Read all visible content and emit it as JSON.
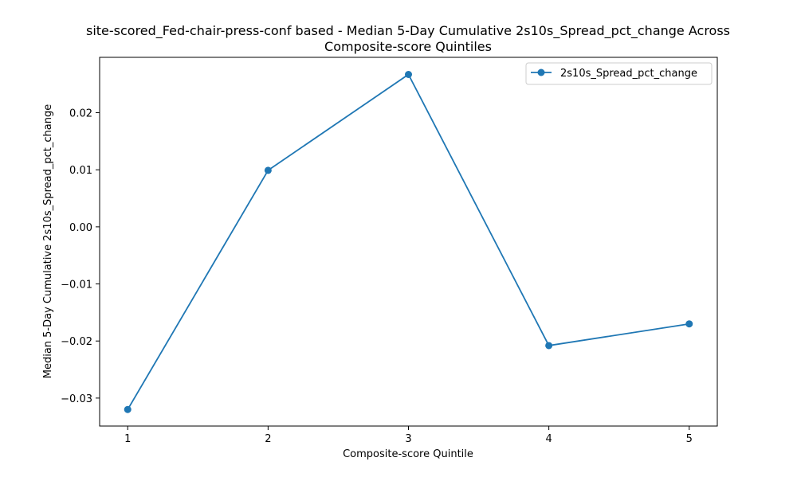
{
  "chart_data": {
    "type": "line",
    "title_line1": "site-scored_Fed-chair-press-conf based - Median 5-Day Cumulative 2s10s_Spread_pct_change Across",
    "title_line2": "Composite-score Quintiles",
    "xlabel": "Composite-score Quintile",
    "ylabel": "Median 5-Day Cumulative 2s10s_Spread_pct_change",
    "x": [
      1,
      2,
      3,
      4,
      5
    ],
    "xtick_labels": [
      "1",
      "2",
      "3",
      "4",
      "5"
    ],
    "yticks": [
      -0.03,
      -0.02,
      -0.01,
      0.0,
      0.01,
      0.02
    ],
    "ytick_labels": [
      "−0.03",
      "−0.02",
      "−0.01",
      "0.00",
      "0.01",
      "0.02"
    ],
    "xlim": [
      0.8,
      5.2
    ],
    "ylim": [
      -0.0349,
      0.0297
    ],
    "grid": false,
    "legend_position": "top-right",
    "series": [
      {
        "name": "2s10s_Spread_pct_change",
        "color": "#1f77b4",
        "marker": "circle",
        "values": [
          -0.032,
          0.0099,
          0.0267,
          -0.0208,
          -0.017
        ]
      }
    ]
  }
}
